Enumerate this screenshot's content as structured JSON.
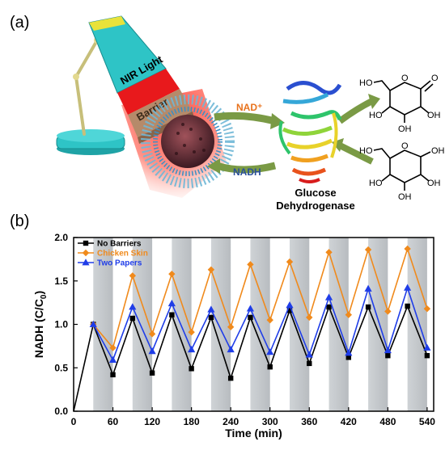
{
  "panels": {
    "a": "(a)",
    "b": "(b)"
  },
  "schematic": {
    "light_label": "NIR Light",
    "barrier_label": "Barrier",
    "cofactor_oxidized": "NAD⁺",
    "cofactor_reduced": "NADH",
    "enzyme_label_line1": "Glucose",
    "enzyme_label_line2": "Dehydrogenase",
    "colors": {
      "lamp_cyan": "#2ec4c6",
      "nir_red": "#e8191c",
      "barrier_brown": "#b58a6a",
      "arrow_green": "#6d8c3a",
      "nad_orange": "#e8721c",
      "nadh_blue": "#2a4f9a"
    }
  },
  "chart_data": {
    "type": "line",
    "xlabel": "Time (min)",
    "ylabel": "NADH (C/C0)",
    "ylabel_parts": {
      "main": "NADH (C/C",
      "sub": "0",
      "close": ")"
    },
    "xlim": [
      0,
      550
    ],
    "ylim": [
      0,
      2.0
    ],
    "xticks": [
      "0",
      "60",
      "120",
      "180",
      "240",
      "300",
      "360",
      "420",
      "480",
      "540"
    ],
    "yticks": [
      "0.0",
      "0.5",
      "1.0",
      "1.5",
      "2.0"
    ],
    "shaded_bands": [
      [
        30,
        60
      ],
      [
        90,
        120
      ],
      [
        150,
        180
      ],
      [
        210,
        240
      ],
      [
        270,
        300
      ],
      [
        330,
        360
      ],
      [
        390,
        420
      ],
      [
        450,
        480
      ],
      [
        510,
        540
      ]
    ],
    "legend_position": "top-left",
    "series": [
      {
        "name": "No Barriers",
        "color": "#000000",
        "marker": "square",
        "x": [
          0,
          30,
          60,
          90,
          120,
          150,
          180,
          210,
          240,
          270,
          300,
          330,
          360,
          390,
          420,
          450,
          480,
          510,
          540
        ],
        "y": [
          0.0,
          1.0,
          0.42,
          1.07,
          0.44,
          1.11,
          0.49,
          1.08,
          0.38,
          1.08,
          0.51,
          1.16,
          0.55,
          1.2,
          0.62,
          1.2,
          0.64,
          1.21,
          0.64
        ]
      },
      {
        "name": "Chicken Skin",
        "color": "#f08a1c",
        "marker": "diamond",
        "x": [
          30,
          60,
          90,
          120,
          150,
          180,
          210,
          240,
          270,
          300,
          330,
          360,
          390,
          420,
          450,
          480,
          510,
          540
        ],
        "y": [
          1.0,
          0.73,
          1.56,
          0.89,
          1.58,
          0.91,
          1.63,
          0.97,
          1.69,
          1.05,
          1.72,
          1.08,
          1.83,
          1.11,
          1.86,
          1.15,
          1.87,
          1.18
        ]
      },
      {
        "name": "Two Papers",
        "color": "#1f3de8",
        "marker": "triangle",
        "x": [
          30,
          60,
          90,
          120,
          150,
          180,
          210,
          240,
          270,
          300,
          330,
          360,
          390,
          420,
          450,
          480,
          510,
          540
        ],
        "y": [
          1.0,
          0.59,
          1.2,
          0.69,
          1.24,
          0.71,
          1.17,
          0.71,
          1.18,
          0.68,
          1.22,
          0.65,
          1.31,
          0.67,
          1.41,
          0.7,
          1.42,
          0.73
        ]
      }
    ]
  }
}
